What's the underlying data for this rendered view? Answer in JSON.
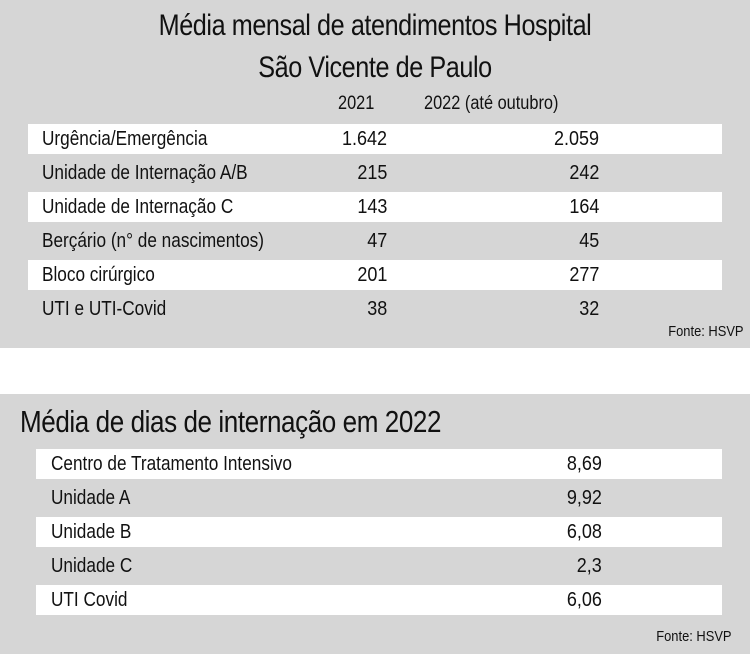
{
  "chart_data": [
    {
      "type": "table",
      "title": "Média mensal de atendimentos Hospital São Vicente de Paulo",
      "title_lines": [
        "Média mensal de atendimentos Hospital",
        "São Vicente de Paulo"
      ],
      "columns": [
        "2021",
        "2022 (até outubro)"
      ],
      "rows": [
        {
          "label": "Urgência/Emergência",
          "values": [
            "1.642",
            "2.059"
          ]
        },
        {
          "label": "Unidade de Internação A/B",
          "values": [
            "215",
            "242"
          ]
        },
        {
          "label": "Unidade de Internação C",
          "values": [
            "143",
            "164"
          ]
        },
        {
          "label": "Berçário (n° de nascimentos)",
          "values": [
            "47",
            "45"
          ]
        },
        {
          "label": "Bloco cirúrgico",
          "values": [
            "201",
            "277"
          ]
        },
        {
          "label": "UTI e UTI-Covid",
          "values": [
            "38",
            "32"
          ]
        }
      ],
      "source": "Fonte: HSVP"
    },
    {
      "type": "table",
      "title": "Média de dias de internação em 2022",
      "rows": [
        {
          "label": "Centro de Tratamento Intensivo",
          "value": "8,69"
        },
        {
          "label": "Unidade A",
          "value": "9,92"
        },
        {
          "label": "Unidade B",
          "value": "6,08"
        },
        {
          "label": "Unidade C",
          "value": "2,3"
        },
        {
          "label": "UTI Covid",
          "value": "6,06"
        }
      ],
      "source": "Fonte: HSVP"
    }
  ],
  "colors": {
    "panel_background": "#d6d6d6",
    "row_highlight": "#ffffff",
    "text": "#111111"
  }
}
